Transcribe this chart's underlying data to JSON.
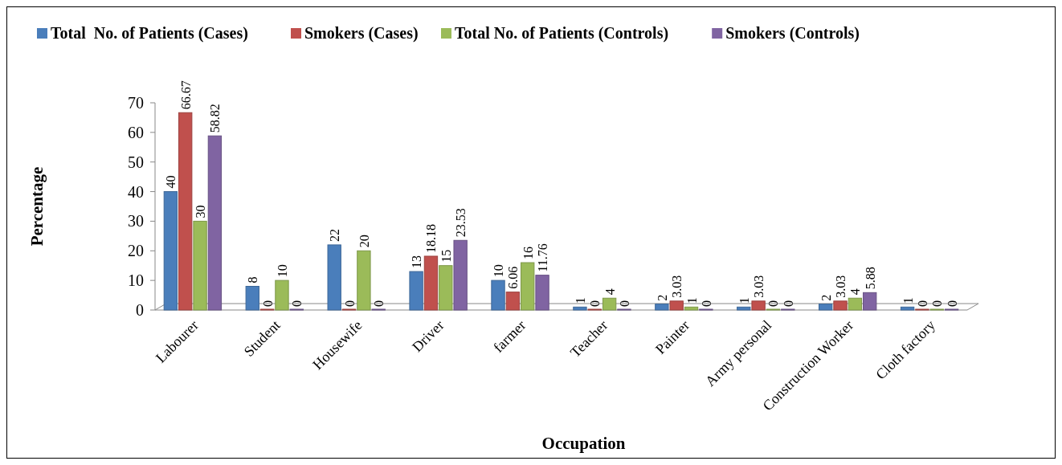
{
  "chart_data": {
    "type": "bar",
    "xlabel": "Occupation",
    "ylabel": "Percentage",
    "categories": [
      "Labourer",
      "Student",
      "Housewife",
      "Driver",
      "farmer",
      "Teacher",
      "Painter",
      "Army personal",
      "Construction Worker",
      "Cloth factory"
    ],
    "series": [
      {
        "name": "Total  No. of Patients (Cases)",
        "color": "#4a7ebb",
        "values": [
          40,
          8,
          22,
          13,
          10,
          1,
          2,
          1,
          2,
          1
        ]
      },
      {
        "name": "Smokers (Cases)",
        "color": "#c0504d",
        "values": [
          66.67,
          0,
          0,
          18.18,
          6.06,
          0,
          3.03,
          3.03,
          3.03,
          0
        ]
      },
      {
        "name": "Total No. of Patients (Controls)",
        "color": "#9bbb59",
        "values": [
          30,
          10,
          20,
          15,
          16,
          4,
          1,
          0,
          4,
          0
        ]
      },
      {
        "name": "Smokers (Controls)",
        "color": "#8064a2",
        "values": [
          58.82,
          0,
          0,
          23.53,
          11.76,
          0,
          0,
          0,
          5.88,
          0
        ]
      }
    ],
    "ylim": [
      0,
      70
    ],
    "yticks": [
      0,
      10,
      20,
      30,
      40,
      50,
      60,
      70
    ],
    "data_labels": true,
    "legend": "top",
    "grid": false
  }
}
